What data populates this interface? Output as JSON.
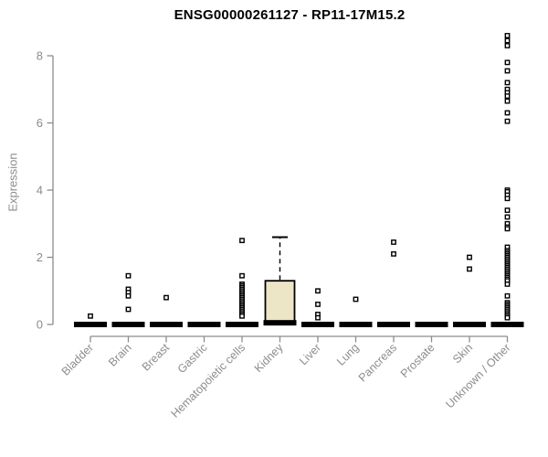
{
  "chart_data": {
    "type": "boxplot",
    "title": "ENSG00000261127 - RP11-17M15.2",
    "ylabel": "Expression",
    "xlabel": "",
    "ylim": [
      0,
      8.6
    ],
    "yticks": [
      0,
      2,
      4,
      6,
      8
    ],
    "grid": false,
    "legend": "none",
    "colors": {
      "title": "#000000",
      "axis": "#8c8c8c",
      "tick_label": "#8c8c8c",
      "box_fill": "#ece5c6",
      "box_stroke": "#000000",
      "median": "#000000",
      "outlier_stroke": "#000000",
      "outlier_fill": "#ffffff",
      "background": "#ffffff"
    },
    "categories": [
      "Bladder",
      "Brain",
      "Breast",
      "Gastric",
      "Hematopoietic cells",
      "Kidney",
      "Liver",
      "Lung",
      "Pancreas",
      "Prostate",
      "Skin",
      "Unknown / Other"
    ],
    "series": [
      {
        "category": "Bladder",
        "whisker_low": 0,
        "q1": 0,
        "median": 0,
        "q3": 0,
        "whisker_high": 0,
        "outliers": [
          0.25
        ]
      },
      {
        "category": "Brain",
        "whisker_low": 0,
        "q1": 0,
        "median": 0,
        "q3": 0,
        "whisker_high": 0,
        "outliers": [
          1.45,
          1.05,
          0.95,
          0.85,
          0.45
        ]
      },
      {
        "category": "Breast",
        "whisker_low": 0,
        "q1": 0,
        "median": 0,
        "q3": 0,
        "whisker_high": 0,
        "outliers": [
          0.8
        ]
      },
      {
        "category": "Gastric",
        "whisker_low": 0,
        "q1": 0,
        "median": 0,
        "q3": 0,
        "whisker_high": 0,
        "outliers": []
      },
      {
        "category": "Hematopoietic cells",
        "whisker_low": 0,
        "q1": 0,
        "median": 0,
        "q3": 0,
        "whisker_high": 0,
        "outliers": [
          2.5,
          1.45,
          1.2,
          1.15,
          1.1,
          1.05,
          1.0,
          0.95,
          0.9,
          0.85,
          0.8,
          0.75,
          0.7,
          0.65,
          0.6,
          0.55,
          0.5,
          0.45,
          0.4,
          0.35,
          0.3,
          0.25
        ]
      },
      {
        "category": "Kidney",
        "whisker_low": 0,
        "q1": 0,
        "median": 0.05,
        "q3": 1.3,
        "whisker_high": 2.6,
        "outliers": []
      },
      {
        "category": "Liver",
        "whisker_low": 0,
        "q1": 0,
        "median": 0,
        "q3": 0,
        "whisker_high": 0,
        "outliers": [
          1.0,
          0.6,
          0.3,
          0.2
        ]
      },
      {
        "category": "Lung",
        "whisker_low": 0,
        "q1": 0,
        "median": 0,
        "q3": 0,
        "whisker_high": 0,
        "outliers": [
          0.75
        ]
      },
      {
        "category": "Pancreas",
        "whisker_low": 0,
        "q1": 0,
        "median": 0,
        "q3": 0,
        "whisker_high": 0,
        "outliers": [
          2.45,
          2.1
        ]
      },
      {
        "category": "Prostate",
        "whisker_low": 0,
        "q1": 0,
        "median": 0,
        "q3": 0,
        "whisker_high": 0,
        "outliers": []
      },
      {
        "category": "Skin",
        "whisker_low": 0,
        "q1": 0,
        "median": 0,
        "q3": 0,
        "whisker_high": 0,
        "outliers": [
          2.0,
          1.65
        ]
      },
      {
        "category": "Unknown / Other",
        "whisker_low": 0,
        "q1": 0,
        "median": 0,
        "q3": 0,
        "whisker_high": 0,
        "outliers": [
          8.6,
          8.45,
          8.3,
          7.8,
          7.55,
          7.2,
          7.0,
          6.9,
          6.8,
          6.65,
          6.3,
          6.05,
          4.0,
          3.95,
          3.85,
          3.75,
          3.4,
          3.2,
          3.0,
          2.9,
          2.85,
          2.3,
          2.2,
          2.15,
          2.1,
          2.05,
          2.0,
          1.95,
          1.9,
          1.85,
          1.8,
          1.75,
          1.7,
          1.65,
          1.6,
          1.55,
          1.5,
          1.45,
          1.4,
          1.35,
          1.3,
          1.2,
          0.85,
          0.65,
          0.6,
          0.55,
          0.5,
          0.45,
          0.4,
          0.35,
          0.3,
          0.25,
          0.2
        ]
      }
    ]
  }
}
